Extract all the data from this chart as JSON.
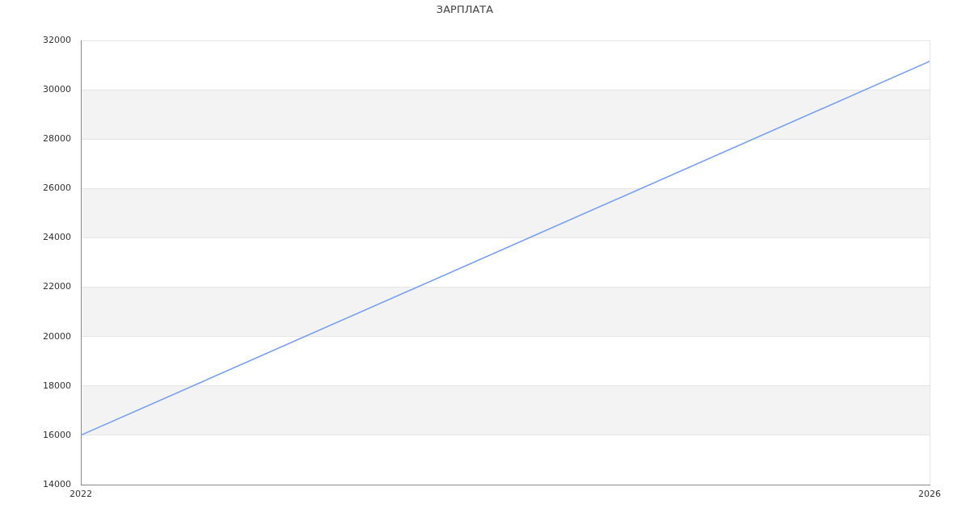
{
  "chart_data": {
    "type": "line",
    "title": "ЗАРПЛАТА",
    "x": [
      "2022",
      "2026"
    ],
    "series": [
      {
        "color": "#78a0f0",
        "values": [
          16000,
          31150
        ]
      }
    ],
    "xlim": [
      "2022",
      "2026"
    ],
    "xticks": [
      "2022",
      "2026"
    ],
    "ylim": [
      14000,
      32000
    ],
    "yticks": [
      14000,
      16000,
      18000,
      20000,
      22000,
      24000,
      26000,
      28000,
      30000,
      32000
    ],
    "grid": "y",
    "legend": false,
    "marker": "none"
  }
}
